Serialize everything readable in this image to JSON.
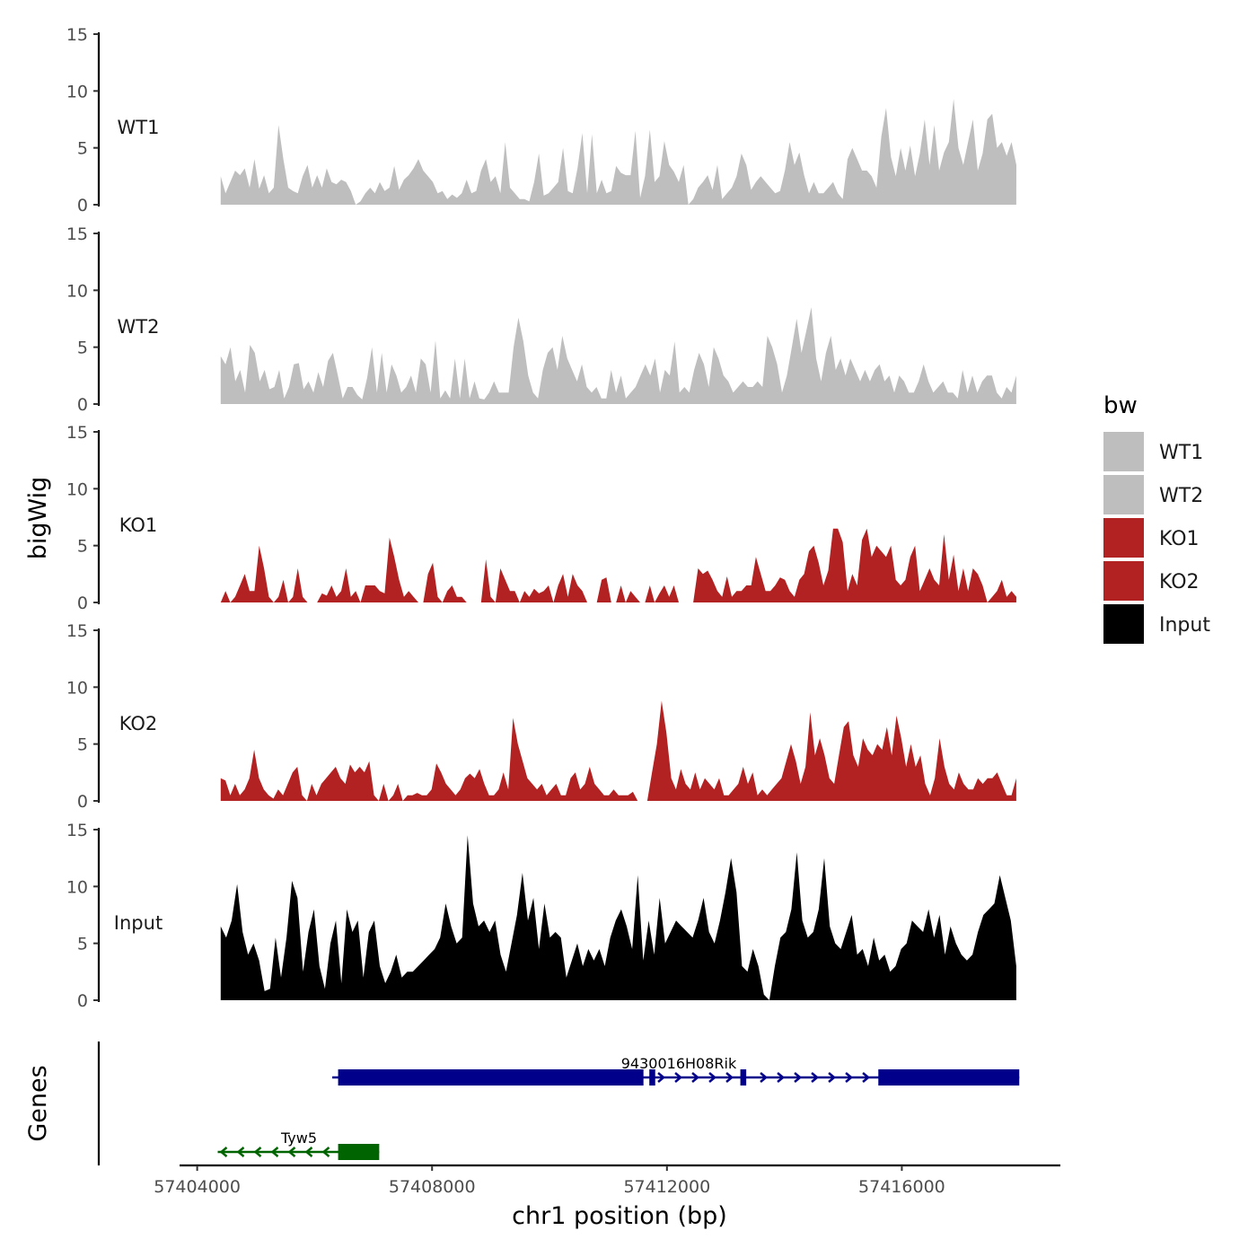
{
  "chart_data": {
    "type": "area",
    "title": "",
    "xlabel": "chr1 position (bp)",
    "ylabel": "bigWig",
    "genes_panel_label": "Genes",
    "xlim": [
      57403700,
      57418700
    ],
    "x_ticks": [
      57404000,
      57408000,
      57412000,
      57416000
    ],
    "x_tick_labels": [
      "57404000",
      "57408000",
      "57412000",
      "57416000"
    ],
    "ylim": [
      0,
      15
    ],
    "y_ticks": [
      0,
      5,
      10,
      15
    ],
    "y_tick_labels": [
      "0",
      "5",
      "10",
      "15"
    ],
    "x_start": 57404400,
    "x_end": 57417950,
    "legend": {
      "title": "bw",
      "position": "right",
      "entries": [
        {
          "label": "WT1",
          "color": "#bebebe"
        },
        {
          "label": "WT2",
          "color": "#bebebe"
        },
        {
          "label": "KO1",
          "color": "#b22222"
        },
        {
          "label": "KO2",
          "color": "#b22222"
        },
        {
          "label": "Input",
          "color": "#000000"
        }
      ]
    },
    "series": [
      {
        "name": "WT1",
        "color": "#bebebe",
        "values": [
          2.5,
          1.0,
          2.0,
          3.0,
          2.6,
          3.2,
          1.5,
          4.0,
          1.4,
          2.6,
          1.0,
          1.5,
          7.0,
          4.0,
          1.5,
          1.2,
          1.0,
          2.5,
          3.5,
          1.5,
          2.6,
          1.5,
          3.2,
          2.0,
          1.8,
          2.2,
          2.0,
          1.2,
          0.0,
          0.3,
          1.0,
          1.5,
          1.0,
          2.0,
          1.2,
          1.5,
          3.4,
          1.3,
          2.2,
          2.6,
          3.2,
          4.0,
          3.0,
          2.5,
          2.0,
          1.0,
          1.2,
          0.5,
          0.9,
          0.6,
          1.0,
          2.2,
          1.0,
          1.2,
          3.0,
          4.0,
          2.0,
          2.5,
          1.0,
          5.5,
          1.5,
          1.0,
          0.5,
          0.5,
          0.3,
          2.0,
          4.5,
          0.8,
          1.0,
          1.5,
          2.0,
          5.0,
          1.2,
          1.0,
          3.2,
          6.3,
          1.0,
          6.2,
          1.0,
          2.2,
          1.0,
          1.2,
          3.4,
          2.8,
          2.6,
          2.6,
          6.5,
          0.6,
          2.5,
          6.6,
          2.0,
          2.5,
          5.6,
          3.5,
          2.9,
          2.0,
          3.5,
          0.0,
          0.5,
          1.5,
          2.0,
          2.6,
          1.3,
          3.5,
          0.5,
          1.0,
          1.5,
          2.5,
          4.5,
          3.5,
          1.3,
          2.0,
          2.5,
          2.0,
          1.5,
          1.0,
          1.2,
          3.0,
          5.5,
          3.5,
          4.6,
          2.6,
          1.0,
          2.0,
          1.0,
          1.0,
          1.5,
          2.0,
          1.0,
          0.5,
          4.0,
          5.0,
          4.0,
          3.0,
          3.0,
          2.5,
          1.5,
          6.0,
          8.5,
          4.2,
          2.5,
          5.0,
          3.0,
          5.2,
          2.5,
          4.5,
          7.5,
          3.5,
          7.0,
          3.0,
          4.6,
          5.5,
          9.3,
          5.0,
          3.5,
          5.5,
          7.5,
          3.0,
          4.5,
          7.5,
          8.0,
          5.0,
          5.5,
          4.3,
          5.5,
          3.5
        ]
      },
      {
        "name": "WT2",
        "color": "#bebebe",
        "values": [
          4.2,
          3.5,
          5.0,
          2.0,
          3.0,
          1.0,
          5.2,
          4.5,
          2.0,
          3.0,
          1.3,
          1.5,
          3.0,
          0.5,
          1.5,
          3.5,
          3.6,
          1.3,
          2.0,
          1.0,
          2.8,
          1.5,
          3.8,
          4.5,
          2.5,
          0.5,
          1.5,
          1.5,
          0.8,
          0.4,
          2.3,
          5.0,
          1.0,
          4.5,
          1.0,
          3.5,
          2.5,
          1.0,
          1.5,
          2.5,
          1.0,
          4.0,
          3.5,
          1.0,
          5.6,
          0.5,
          1.2,
          0.5,
          4.0,
          0.5,
          4.0,
          0.5,
          2.0,
          0.5,
          0.4,
          1.0,
          2.0,
          1.0,
          1.0,
          1.0,
          5.0,
          7.6,
          5.5,
          2.5,
          1.0,
          0.5,
          3.0,
          4.5,
          5.0,
          3.0,
          6.0,
          4.0,
          3.0,
          2.0,
          3.5,
          1.5,
          1.0,
          1.5,
          0.5,
          0.5,
          3.0,
          1.0,
          2.5,
          0.5,
          1.0,
          1.5,
          2.5,
          3.5,
          2.5,
          4.0,
          1.0,
          3.0,
          2.5,
          5.5,
          1.0,
          1.5,
          1.0,
          3.0,
          4.5,
          3.5,
          1.5,
          5.0,
          4.0,
          2.5,
          2.0,
          1.0,
          1.5,
          2.0,
          1.5,
          1.5,
          2.0,
          1.5,
          6.0,
          5.0,
          3.5,
          1.0,
          2.5,
          5.0,
          7.5,
          4.5,
          6.5,
          8.5,
          4.0,
          2.0,
          4.5,
          6.0,
          3.0,
          4.0,
          2.5,
          4.0,
          3.0,
          2.0,
          3.0,
          2.0,
          3.0,
          3.5,
          2.0,
          2.5,
          1.0,
          2.5,
          2.0,
          1.0,
          1.0,
          2.0,
          3.5,
          2.0,
          1.0,
          1.5,
          2.0,
          1.0,
          1.0,
          0.5,
          3.0,
          1.0,
          2.5,
          1.0,
          2.0,
          2.5,
          2.5,
          1.0,
          0.5,
          1.5,
          1.0,
          2.5
        ]
      },
      {
        "name": "KO1",
        "color": "#b22222",
        "values": [
          0.0,
          1.0,
          0.0,
          0.5,
          1.5,
          2.5,
          1.0,
          1.0,
          5.0,
          3.0,
          0.5,
          0.0,
          0.5,
          2.0,
          0.0,
          0.5,
          3.0,
          0.5,
          0.0,
          0.0,
          0.0,
          0.8,
          0.6,
          1.5,
          0.5,
          1.0,
          3.0,
          0.5,
          1.0,
          0.0,
          1.5,
          1.5,
          1.5,
          1.0,
          0.8,
          5.7,
          4.0,
          2.0,
          0.5,
          1.0,
          0.5,
          0.0,
          0.0,
          2.5,
          3.5,
          0.5,
          0.0,
          1.0,
          1.5,
          0.5,
          0.5,
          0.0,
          0.0,
          0.0,
          0.0,
          3.8,
          0.5,
          0.0,
          3.0,
          2.0,
          1.0,
          1.0,
          0.0,
          1.0,
          0.5,
          1.2,
          0.8,
          1.0,
          1.5,
          0.0,
          1.5,
          2.5,
          0.5,
          2.5,
          1.5,
          1.0,
          0.0,
          0.0,
          0.0,
          2.0,
          2.2,
          0.0,
          0.0,
          1.5,
          0.0,
          1.0,
          0.5,
          0.0,
          0.0,
          1.5,
          0.0,
          0.8,
          1.5,
          0.5,
          1.5,
          0.0,
          0.0,
          0.0,
          0.0,
          3.0,
          2.5,
          2.8,
          2.0,
          1.0,
          0.5,
          2.3,
          0.5,
          1.0,
          1.0,
          1.5,
          1.5,
          4.0,
          2.5,
          1.0,
          1.0,
          1.5,
          2.2,
          2.0,
          1.0,
          0.5,
          2.0,
          2.5,
          4.5,
          5.0,
          3.5,
          1.5,
          2.8,
          6.5,
          6.5,
          5.3,
          1.0,
          2.5,
          1.5,
          5.5,
          6.5,
          4.0,
          5.0,
          4.5,
          4.0,
          5.0,
          2.0,
          1.5,
          2.0,
          4.0,
          5.0,
          1.0,
          2.0,
          3.0,
          2.0,
          1.5,
          6.0,
          2.0,
          4.2,
          1.0,
          3.0,
          1.0,
          3.0,
          2.5,
          1.5,
          0.0,
          0.5,
          1.0,
          2.0,
          0.5,
          1.0,
          0.5
        ]
      },
      {
        "name": "KO2",
        "color": "#b22222",
        "values": [
          2.0,
          1.8,
          0.5,
          1.5,
          0.5,
          1.0,
          2.0,
          4.5,
          2.0,
          1.0,
          0.5,
          0.2,
          1.0,
          0.5,
          1.5,
          2.5,
          3.0,
          0.5,
          0.0,
          1.5,
          0.5,
          1.5,
          2.0,
          2.5,
          3.0,
          2.0,
          1.5,
          3.2,
          2.5,
          3.0,
          2.5,
          3.5,
          0.5,
          0.0,
          1.5,
          0.0,
          0.5,
          1.5,
          0.0,
          0.5,
          0.5,
          0.7,
          0.5,
          0.5,
          1.0,
          3.3,
          2.5,
          1.5,
          1.0,
          0.5,
          1.0,
          2.0,
          2.4,
          2.0,
          2.8,
          1.5,
          0.5,
          0.5,
          1.0,
          2.5,
          1.0,
          7.3,
          5.0,
          3.5,
          2.0,
          1.5,
          1.0,
          1.5,
          0.5,
          1.0,
          1.5,
          0.5,
          0.5,
          2.0,
          2.5,
          1.0,
          1.5,
          3.0,
          1.5,
          1.0,
          0.5,
          0.5,
          1.0,
          0.5,
          0.5,
          0.5,
          0.8,
          0.0,
          0.0,
          0.0,
          2.5,
          5.0,
          8.8,
          6.0,
          2.0,
          1.0,
          2.8,
          1.5,
          1.0,
          2.5,
          1.0,
          2.0,
          1.5,
          1.0,
          2.0,
          0.5,
          0.5,
          1.0,
          1.5,
          3.0,
          1.5,
          2.5,
          0.5,
          1.0,
          0.5,
          1.0,
          1.5,
          2.0,
          3.5,
          5.0,
          3.5,
          1.5,
          3.0,
          7.8,
          4.0,
          5.5,
          4.0,
          2.0,
          1.5,
          4.0,
          6.5,
          7.0,
          4.0,
          3.0,
          5.5,
          4.5,
          4.0,
          5.0,
          4.5,
          6.5,
          4.0,
          7.5,
          5.5,
          3.0,
          5.0,
          3.0,
          4.0,
          1.5,
          0.5,
          2.0,
          5.5,
          3.0,
          1.5,
          1.0,
          2.5,
          1.5,
          1.0,
          1.0,
          2.0,
          1.5,
          2.0,
          2.0,
          2.5,
          1.5,
          0.5,
          0.5,
          2.0
        ]
      },
      {
        "name": "Input",
        "color": "#000000",
        "values": [
          6.5,
          5.5,
          7.0,
          10.2,
          6.0,
          4.0,
          5.0,
          3.5,
          0.8,
          1.0,
          5.5,
          2.0,
          5.5,
          10.5,
          9.0,
          2.5,
          6.0,
          8.0,
          3.0,
          1.0,
          5.0,
          7.0,
          1.5,
          8.0,
          6.0,
          7.0,
          2.0,
          6.0,
          7.0,
          3.0,
          1.5,
          2.5,
          4.0,
          2.0,
          2.5,
          2.5,
          3.0,
          3.5,
          4.0,
          4.5,
          5.5,
          8.5,
          6.5,
          5.0,
          5.5,
          14.5,
          8.5,
          6.5,
          7.0,
          6.0,
          7.0,
          4.0,
          2.5,
          5.0,
          7.5,
          11.2,
          7.0,
          9.0,
          4.5,
          8.5,
          5.5,
          6.0,
          5.5,
          2.0,
          3.5,
          5.0,
          3.0,
          4.5,
          3.5,
          4.5,
          3.0,
          5.5,
          7.0,
          8.0,
          6.5,
          4.5,
          11.0,
          3.5,
          7.0,
          4.0,
          9.0,
          5.0,
          6.0,
          7.0,
          6.5,
          6.0,
          5.5,
          7.0,
          9.0,
          6.0,
          5.0,
          7.0,
          9.5,
          12.5,
          9.5,
          3.0,
          2.5,
          4.5,
          3.0,
          0.5,
          0.0,
          3.0,
          5.5,
          6.0,
          8.0,
          13.0,
          7.0,
          5.5,
          6.0,
          8.0,
          12.5,
          6.5,
          5.0,
          4.5,
          6.0,
          7.5,
          4.0,
          4.5,
          3.0,
          5.5,
          3.5,
          4.0,
          2.5,
          3.0,
          4.5,
          5.0,
          7.0,
          6.5,
          6.0,
          8.0,
          5.5,
          7.5,
          4.0,
          6.5,
          5.0,
          4.0,
          3.5,
          4.0,
          6.0,
          7.5,
          8.0,
          8.5,
          11.0,
          9.0,
          7.0,
          3.0
        ]
      }
    ],
    "genes": [
      {
        "name": "9430016H08Rik",
        "color": "#00008b",
        "strand": "+",
        "start": 57406300,
        "end": 57418000,
        "exons": [
          [
            57406400,
            57411600
          ],
          [
            57411700,
            57411800
          ],
          [
            57413250,
            57413350
          ],
          [
            57415600,
            57418000
          ]
        ]
      },
      {
        "name": "Tyw5",
        "color": "#006400",
        "strand": "-",
        "start": 57404350,
        "end": 57407100,
        "exons": [
          [
            57406400,
            57407100
          ]
        ]
      }
    ]
  }
}
